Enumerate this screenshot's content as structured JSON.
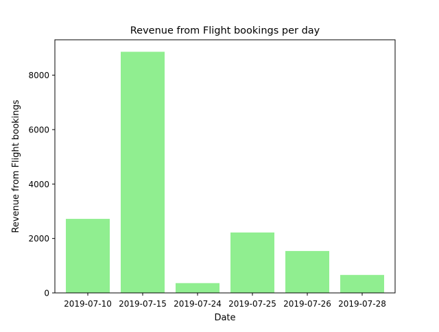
{
  "chart_data": {
    "type": "bar",
    "title": "Revenue from Flight bookings per day",
    "xlabel": "Date",
    "ylabel": "Revenue from Flight bookings",
    "categories": [
      "2019-07-10",
      "2019-07-15",
      "2019-07-24",
      "2019-07-25",
      "2019-07-26",
      "2019-07-28"
    ],
    "values": [
      2720,
      8860,
      360,
      2220,
      1540,
      660
    ],
    "ylim": [
      0,
      9300
    ],
    "yticks": [
      0,
      2000,
      4000,
      6000,
      8000
    ],
    "bar_color": "#90ee90",
    "grid": false,
    "legend": false
  }
}
